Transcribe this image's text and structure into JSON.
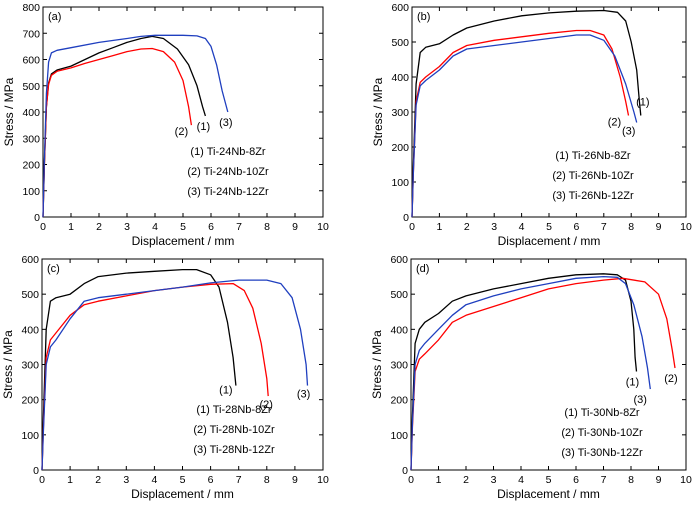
{
  "colors": {
    "series1": "#000000",
    "series2": "#ff0000",
    "series3": "#1f3fbf"
  },
  "chart_data": [
    {
      "type": "line",
      "panel_label": "(a)",
      "xlabel": "Displacement / mm",
      "ylabel": "Stress / MPa",
      "xlim": [
        0,
        10
      ],
      "ylim": [
        0,
        800
      ],
      "xticks": [
        0,
        1,
        2,
        3,
        4,
        5,
        6,
        7,
        8,
        9,
        10
      ],
      "yticks": [
        0,
        100,
        200,
        300,
        400,
        500,
        600,
        700,
        800
      ],
      "legend_position": "lower-right",
      "series": [
        {
          "name": "(1) Ti-24Nb-8Zr",
          "end_label": "(1)",
          "color": "#000000",
          "points": [
            [
              0,
              0
            ],
            [
              0.05,
              200
            ],
            [
              0.12,
              420
            ],
            [
              0.2,
              510
            ],
            [
              0.3,
              545
            ],
            [
              0.5,
              560
            ],
            [
              1,
              575
            ],
            [
              1.5,
              600
            ],
            [
              2,
              625
            ],
            [
              2.5,
              645
            ],
            [
              3,
              665
            ],
            [
              3.5,
              680
            ],
            [
              3.9,
              688
            ],
            [
              4.3,
              680
            ],
            [
              4.8,
              640
            ],
            [
              5.2,
              580
            ],
            [
              5.5,
              500
            ],
            [
              5.7,
              420
            ],
            [
              5.8,
              385
            ]
          ]
        },
        {
          "name": "(2) Ti-24Nb-10Zr",
          "end_label": "(2)",
          "color": "#ff0000",
          "points": [
            [
              0,
              0
            ],
            [
              0.05,
              200
            ],
            [
              0.12,
              420
            ],
            [
              0.2,
              505
            ],
            [
              0.3,
              540
            ],
            [
              0.5,
              555
            ],
            [
              1,
              568
            ],
            [
              1.5,
              585
            ],
            [
              2,
              600
            ],
            [
              2.5,
              615
            ],
            [
              3,
              630
            ],
            [
              3.5,
              640
            ],
            [
              3.9,
              642
            ],
            [
              4.3,
              630
            ],
            [
              4.7,
              590
            ],
            [
              5,
              520
            ],
            [
              5.2,
              420
            ],
            [
              5.3,
              350
            ]
          ]
        },
        {
          "name": "(3) Ti-24Nb-12Zr",
          "end_label": "(3)",
          "color": "#1f3fbf",
          "points": [
            [
              0,
              0
            ],
            [
              0.05,
              220
            ],
            [
              0.12,
              470
            ],
            [
              0.2,
              590
            ],
            [
              0.3,
              625
            ],
            [
              0.5,
              635
            ],
            [
              1,
              645
            ],
            [
              2,
              665
            ],
            [
              3,
              680
            ],
            [
              3.5,
              688
            ],
            [
              4,
              692
            ],
            [
              5,
              692
            ],
            [
              5.5,
              690
            ],
            [
              5.8,
              680
            ],
            [
              6,
              650
            ],
            [
              6.2,
              580
            ],
            [
              6.4,
              480
            ],
            [
              6.6,
              400
            ]
          ]
        }
      ]
    },
    {
      "type": "line",
      "panel_label": "(b)",
      "xlabel": "Displacement / mm",
      "ylabel": "Stress / MPa",
      "xlim": [
        0,
        10
      ],
      "ylim": [
        0,
        600
      ],
      "xticks": [
        0,
        1,
        2,
        3,
        4,
        5,
        6,
        7,
        8,
        9,
        10
      ],
      "yticks": [
        0,
        100,
        200,
        300,
        400,
        500,
        600
      ],
      "legend_position": "lower-right",
      "series": [
        {
          "name": "(1) Ti-26Nb-8Zr",
          "end_label": "(1)",
          "color": "#000000",
          "points": [
            [
              0,
              0
            ],
            [
              0.05,
              150
            ],
            [
              0.15,
              380
            ],
            [
              0.3,
              470
            ],
            [
              0.5,
              485
            ],
            [
              1,
              495
            ],
            [
              1.5,
              520
            ],
            [
              2,
              540
            ],
            [
              3,
              560
            ],
            [
              4,
              575
            ],
            [
              5,
              583
            ],
            [
              6,
              588
            ],
            [
              7,
              590
            ],
            [
              7.5,
              585
            ],
            [
              7.8,
              560
            ],
            [
              8,
              500
            ],
            [
              8.2,
              420
            ],
            [
              8.3,
              330
            ],
            [
              8.35,
              290
            ]
          ]
        },
        {
          "name": "(2) Ti-26Nb-10Zr",
          "end_label": "(2)",
          "color": "#ff0000",
          "points": [
            [
              0,
              0
            ],
            [
              0.05,
              130
            ],
            [
              0.15,
              330
            ],
            [
              0.3,
              385
            ],
            [
              0.5,
              400
            ],
            [
              1,
              430
            ],
            [
              1.5,
              470
            ],
            [
              2,
              490
            ],
            [
              3,
              505
            ],
            [
              4,
              515
            ],
            [
              5,
              525
            ],
            [
              6,
              533
            ],
            [
              6.5,
              533
            ],
            [
              7,
              520
            ],
            [
              7.3,
              480
            ],
            [
              7.6,
              400
            ],
            [
              7.8,
              330
            ],
            [
              7.9,
              290
            ]
          ]
        },
        {
          "name": "(3) Ti-26Nb-12Zr",
          "end_label": "(3)",
          "color": "#1f3fbf",
          "points": [
            [
              0,
              0
            ],
            [
              0.05,
              130
            ],
            [
              0.15,
              320
            ],
            [
              0.3,
              375
            ],
            [
              0.5,
              390
            ],
            [
              1,
              420
            ],
            [
              1.5,
              460
            ],
            [
              2,
              480
            ],
            [
              3,
              490
            ],
            [
              4,
              500
            ],
            [
              5,
              510
            ],
            [
              6,
              520
            ],
            [
              6.5,
              520
            ],
            [
              7,
              505
            ],
            [
              7.4,
              460
            ],
            [
              7.8,
              380
            ],
            [
              8.1,
              300
            ],
            [
              8.2,
              270
            ]
          ]
        }
      ]
    },
    {
      "type": "line",
      "panel_label": "(c)",
      "xlabel": "Displacement / mm",
      "ylabel": "Stress / MPa",
      "xlim": [
        0,
        10
      ],
      "ylim": [
        0,
        600
      ],
      "xticks": [
        0,
        1,
        2,
        3,
        4,
        5,
        6,
        7,
        8,
        9,
        10
      ],
      "yticks": [
        0,
        100,
        200,
        300,
        400,
        500,
        600
      ],
      "legend_position": "lower-right",
      "series": [
        {
          "name": "(1) Ti-28Nb-8Zr",
          "end_label": "(1)",
          "color": "#000000",
          "points": [
            [
              0,
              0
            ],
            [
              0.05,
              150
            ],
            [
              0.15,
              400
            ],
            [
              0.3,
              480
            ],
            [
              0.5,
              490
            ],
            [
              1,
              500
            ],
            [
              1.5,
              530
            ],
            [
              2,
              550
            ],
            [
              3,
              560
            ],
            [
              4,
              565
            ],
            [
              5,
              570
            ],
            [
              5.5,
              570
            ],
            [
              6,
              555
            ],
            [
              6.3,
              520
            ],
            [
              6.6,
              420
            ],
            [
              6.8,
              320
            ],
            [
              6.9,
              240
            ]
          ]
        },
        {
          "name": "(2) Ti-28Nb-10Zr",
          "end_label": "(2)",
          "color": "#ff0000",
          "points": [
            [
              0,
              0
            ],
            [
              0.05,
              120
            ],
            [
              0.15,
              320
            ],
            [
              0.3,
              370
            ],
            [
              0.5,
              390
            ],
            [
              1,
              440
            ],
            [
              1.5,
              470
            ],
            [
              2,
              480
            ],
            [
              3,
              495
            ],
            [
              4,
              510
            ],
            [
              5,
              520
            ],
            [
              6,
              528
            ],
            [
              6.8,
              530
            ],
            [
              7.2,
              510
            ],
            [
              7.5,
              460
            ],
            [
              7.8,
              360
            ],
            [
              8,
              260
            ],
            [
              8.05,
              210
            ]
          ]
        },
        {
          "name": "(3) Ti-28Nb-12Zr",
          "end_label": "(3)",
          "color": "#1f3fbf",
          "points": [
            [
              0,
              0
            ],
            [
              0.05,
              110
            ],
            [
              0.15,
              300
            ],
            [
              0.3,
              350
            ],
            [
              0.5,
              370
            ],
            [
              1,
              430
            ],
            [
              1.5,
              480
            ],
            [
              2,
              490
            ],
            [
              3,
              500
            ],
            [
              4,
              510
            ],
            [
              5,
              520
            ],
            [
              6,
              532
            ],
            [
              7,
              540
            ],
            [
              8,
              540
            ],
            [
              8.5,
              530
            ],
            [
              8.9,
              490
            ],
            [
              9.2,
              400
            ],
            [
              9.4,
              300
            ],
            [
              9.45,
              240
            ]
          ]
        }
      ]
    },
    {
      "type": "line",
      "panel_label": "(d)",
      "xlabel": "Displacement / mm",
      "ylabel": "Stress / MPa",
      "xlim": [
        0,
        10
      ],
      "ylim": [
        0,
        600
      ],
      "xticks": [
        0,
        1,
        2,
        3,
        4,
        5,
        6,
        7,
        8,
        9,
        10
      ],
      "yticks": [
        0,
        100,
        200,
        300,
        400,
        500,
        600
      ],
      "legend_position": "lower-right",
      "series": [
        {
          "name": "(1) Ti-30Nb-8Zr",
          "end_label": "(1)",
          "color": "#000000",
          "points": [
            [
              0,
              0
            ],
            [
              0.05,
              150
            ],
            [
              0.15,
              360
            ],
            [
              0.3,
              400
            ],
            [
              0.5,
              420
            ],
            [
              1,
              445
            ],
            [
              1.5,
              480
            ],
            [
              2,
              495
            ],
            [
              3,
              515
            ],
            [
              4,
              530
            ],
            [
              5,
              545
            ],
            [
              6,
              555
            ],
            [
              7,
              558
            ],
            [
              7.5,
              555
            ],
            [
              7.8,
              540
            ],
            [
              8,
              480
            ],
            [
              8.1,
              400
            ],
            [
              8.15,
              320
            ],
            [
              8.2,
              280
            ]
          ]
        },
        {
          "name": "(2) Ti-30Nb-10Zr",
          "end_label": "(2)",
          "color": "#ff0000",
          "points": [
            [
              0,
              0
            ],
            [
              0.05,
              120
            ],
            [
              0.15,
              280
            ],
            [
              0.3,
              315
            ],
            [
              0.5,
              330
            ],
            [
              1,
              370
            ],
            [
              1.5,
              420
            ],
            [
              2,
              440
            ],
            [
              3,
              465
            ],
            [
              4,
              490
            ],
            [
              5,
              515
            ],
            [
              6,
              530
            ],
            [
              7,
              540
            ],
            [
              7.7,
              545
            ],
            [
              8.5,
              535
            ],
            [
              9,
              500
            ],
            [
              9.3,
              430
            ],
            [
              9.5,
              340
            ],
            [
              9.6,
              290
            ]
          ]
        },
        {
          "name": "(3) Ti-30Nb-12Zr",
          "end_label": "(3)",
          "color": "#1f3fbf",
          "points": [
            [
              0,
              0
            ],
            [
              0.05,
              130
            ],
            [
              0.15,
              300
            ],
            [
              0.3,
              340
            ],
            [
              0.5,
              360
            ],
            [
              1,
              400
            ],
            [
              1.5,
              440
            ],
            [
              2,
              470
            ],
            [
              3,
              495
            ],
            [
              4,
              515
            ],
            [
              5,
              530
            ],
            [
              6,
              545
            ],
            [
              7,
              550
            ],
            [
              7.5,
              548
            ],
            [
              7.8,
              530
            ],
            [
              8.1,
              470
            ],
            [
              8.4,
              380
            ],
            [
              8.6,
              290
            ],
            [
              8.7,
              230
            ]
          ]
        }
      ]
    }
  ]
}
